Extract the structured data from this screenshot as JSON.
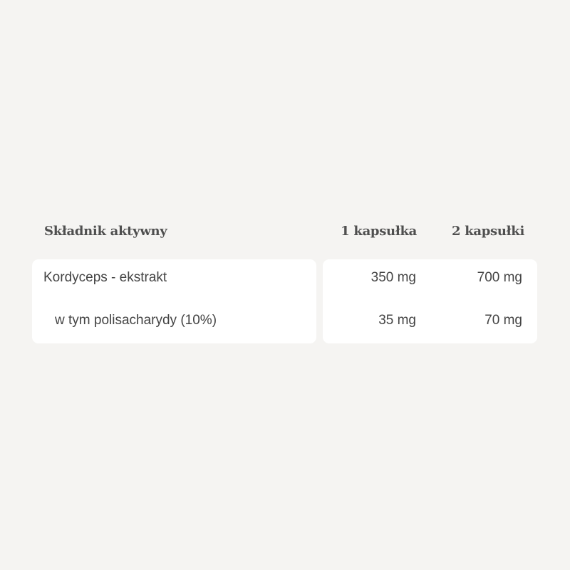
{
  "header": {
    "ingredient": "Składnik aktywny",
    "col1": "1 kapsułka",
    "col2": "2 kapsułki"
  },
  "rows": [
    {
      "name": "Kordyceps - ekstrakt",
      "v1": "350 mg",
      "v2": "700 mg"
    },
    {
      "name": "w tym polisacharydy (10%)",
      "v1": "35 mg",
      "v2": "70 mg"
    }
  ]
}
